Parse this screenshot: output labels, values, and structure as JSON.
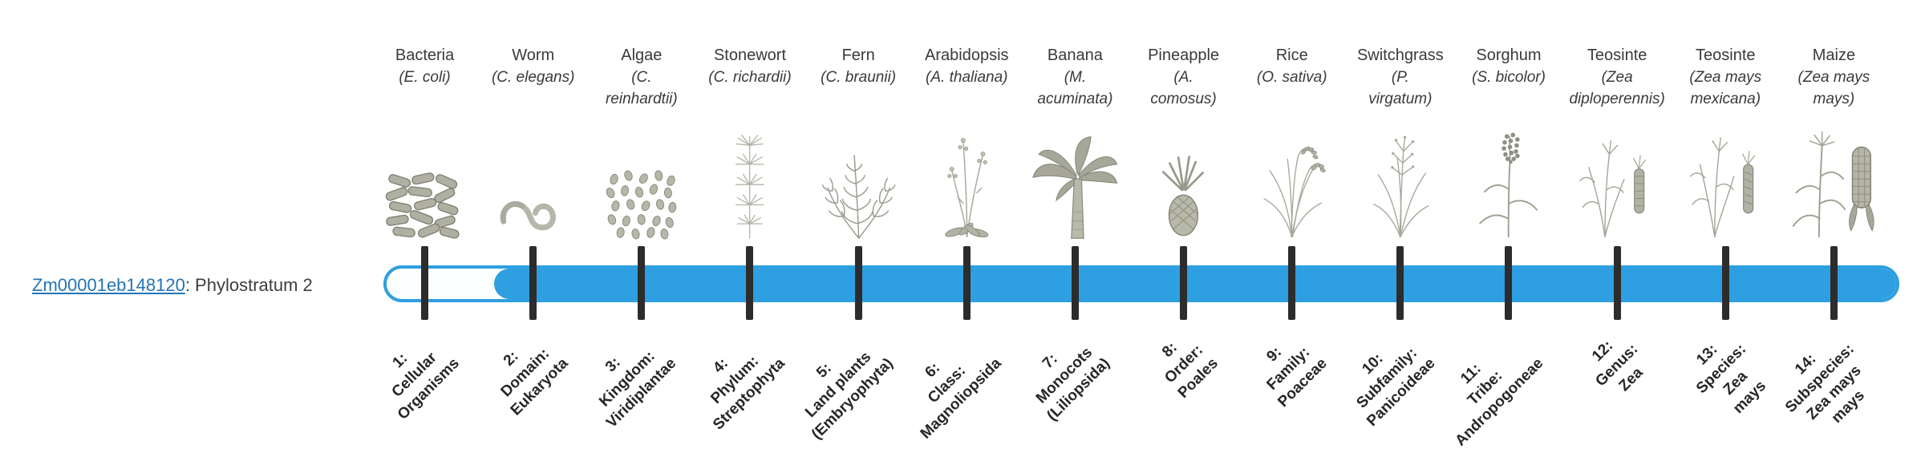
{
  "gene": {
    "id_link": "Zm00001eb148120",
    "suffix": ": Phylostratum 2",
    "phylostratum": 2
  },
  "timeline": {
    "bar_color": "#2e9fe0",
    "tick_color": "#2c2c2c",
    "fill_start_stratum": 2,
    "items": [
      {
        "common_name": "Bacteria",
        "scientific_name": "(E. coli)",
        "icon": "bacteria-icon",
        "stratum_label": "1:\nCellular\nOrganisms"
      },
      {
        "common_name": "Worm",
        "scientific_name": "(C. elegans)",
        "icon": "worm-icon",
        "stratum_label": "2:\nDomain:\nEukaryota"
      },
      {
        "common_name": "Algae",
        "scientific_name": "(C.\nreinhardtii)",
        "icon": "algae-icon",
        "stratum_label": "3:\nKingdom:\nViridiplantae"
      },
      {
        "common_name": "Stonewort",
        "scientific_name": "(C. richardii)",
        "icon": "stonewort-icon",
        "stratum_label": "4:\nPhylum:\nStreptophyta"
      },
      {
        "common_name": "Fern",
        "scientific_name": "(C. braunii)",
        "icon": "fern-icon",
        "stratum_label": "5:\nLand plants\n(Embryophyta)"
      },
      {
        "common_name": "Arabidopsis",
        "scientific_name": "(A. thaliana)",
        "icon": "arabidopsis-icon",
        "stratum_label": "6:\nClass:\nMagnoliopsida"
      },
      {
        "common_name": "Banana",
        "scientific_name": "(M.\nacuminata)",
        "icon": "banana-icon",
        "stratum_label": "7:\nMonocots\n(Liliopsida)"
      },
      {
        "common_name": "Pineapple",
        "scientific_name": "(A.\ncomosus)",
        "icon": "pineapple-icon",
        "stratum_label": "8:\nOrder:\nPoales"
      },
      {
        "common_name": "Rice",
        "scientific_name": "(O. sativa)",
        "icon": "rice-icon",
        "stratum_label": "9:\nFamily:\nPoaceae"
      },
      {
        "common_name": "Switchgrass",
        "scientific_name": "(P.\nvirgatum)",
        "icon": "switchgrass-icon",
        "stratum_label": "10:\nSubfamily:\nPanicoideae"
      },
      {
        "common_name": "Sorghum",
        "scientific_name": "(S. bicolor)",
        "icon": "sorghum-icon",
        "stratum_label": "11:\nTribe:\nAndropogoneae"
      },
      {
        "common_name": "Teosinte",
        "scientific_name": "(Zea\ndiploperennis)",
        "icon": "teosinte-diploperennis-icon",
        "stratum_label": "12:\nGenus:\nZea"
      },
      {
        "common_name": "Teosinte",
        "scientific_name": "(Zea mays\nmexicana)",
        "icon": "teosinte-mexicana-icon",
        "stratum_label": "13:\nSpecies:\nZea\nmays"
      },
      {
        "common_name": "Maize",
        "scientific_name": "(Zea mays\nmays)",
        "icon": "maize-icon",
        "stratum_label": "14:\nSubspecies:\nZea mays\nmays"
      }
    ]
  }
}
